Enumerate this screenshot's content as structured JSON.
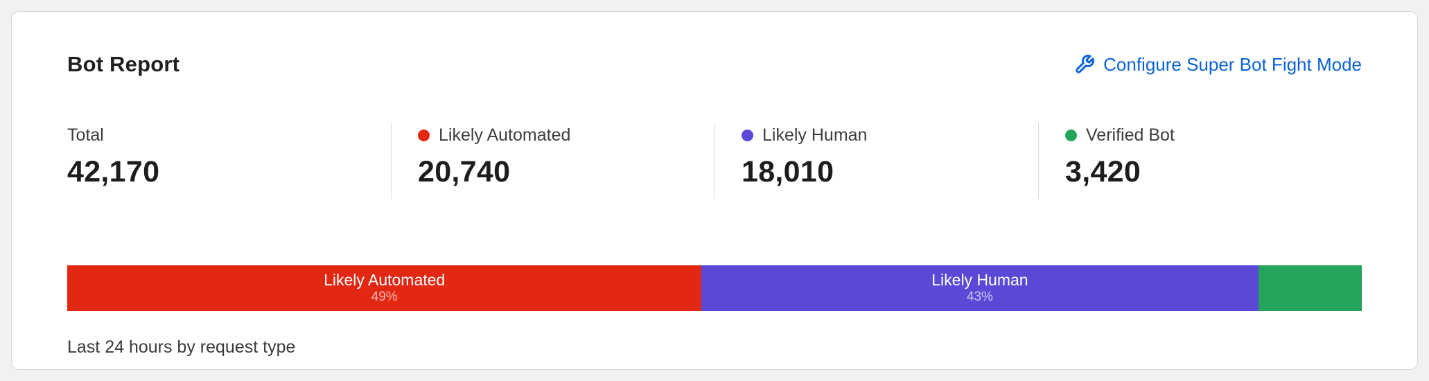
{
  "card": {
    "title": "Bot Report",
    "configure_link_label": "Configure Super Bot Fight Mode",
    "link_color": "#0b62d9"
  },
  "stats": [
    {
      "label": "Total",
      "value": "42,170",
      "dot_color": ""
    },
    {
      "label": "Likely Automated",
      "value": "20,740",
      "dot_color": "#e22813"
    },
    {
      "label": "Likely Human",
      "value": "18,010",
      "dot_color": "#5a49d6"
    },
    {
      "label": "Verified Bot",
      "value": "3,420",
      "dot_color": "#23a55b"
    }
  ],
  "bar": {
    "segments": [
      {
        "label": "Likely Automated",
        "pct_text": "49%",
        "width_pct": 49,
        "color": "#e22813"
      },
      {
        "label": "Likely Human",
        "pct_text": "43%",
        "width_pct": 43,
        "color": "#5a49d6"
      },
      {
        "label": "",
        "pct_text": "",
        "width_pct": 8,
        "color": "#23a55b"
      }
    ]
  },
  "caption": "Last 24 hours by request type",
  "chart_data": {
    "type": "bar",
    "stacked": true,
    "title": "Bot Report",
    "caption": "Last 24 hours by request type",
    "categories": [
      "Likely Automated",
      "Likely Human",
      "Verified Bot"
    ],
    "values": [
      20740,
      18010,
      3420
    ],
    "percentages": [
      49,
      43,
      8
    ],
    "total": 42170,
    "colors": [
      "#e22813",
      "#5a49d6",
      "#23a55b"
    ],
    "legend_position": "top",
    "grid": false
  }
}
